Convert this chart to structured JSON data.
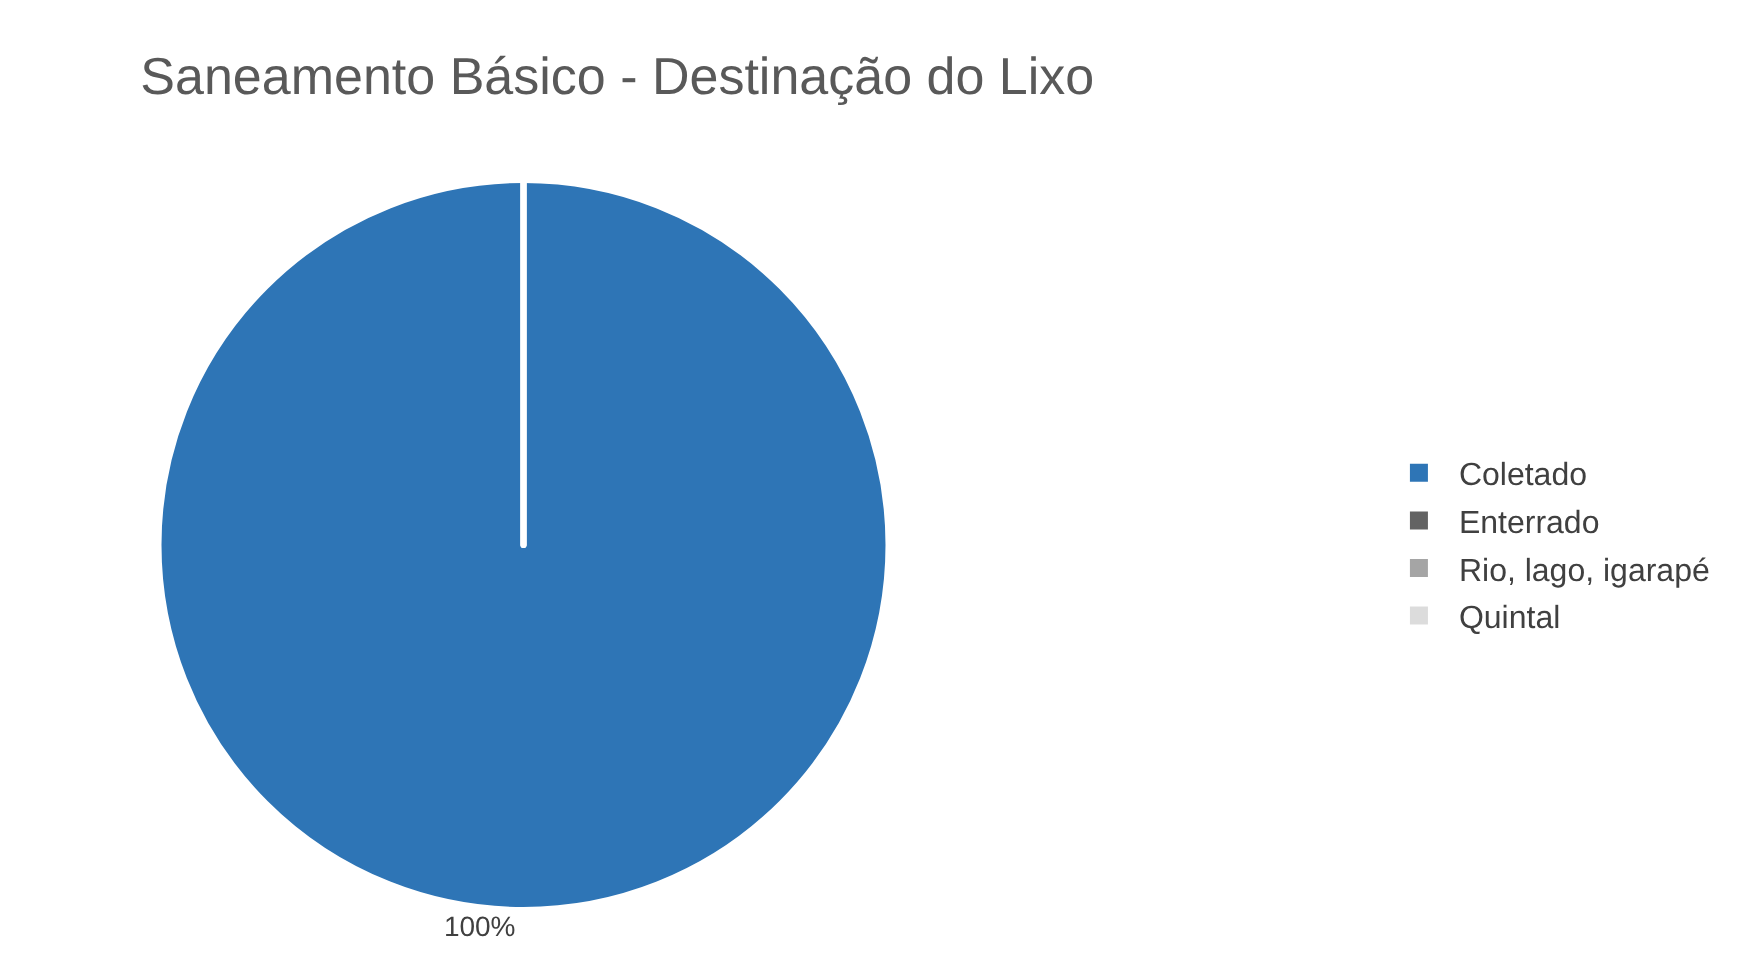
{
  "chart_data": {
    "type": "pie",
    "title": "Saneamento Básico - Destinação do Lixo",
    "categories": [
      "Coletado",
      "Enterrado",
      "Rio, lago, igarapé",
      "Quintal"
    ],
    "values": [
      100,
      0,
      0,
      0
    ],
    "colors": [
      "#2e75b6",
      "#636363",
      "#a5a5a5",
      "#dcdcdc"
    ],
    "value_labels": [
      "100%",
      null,
      null,
      null
    ],
    "legend": "right"
  }
}
